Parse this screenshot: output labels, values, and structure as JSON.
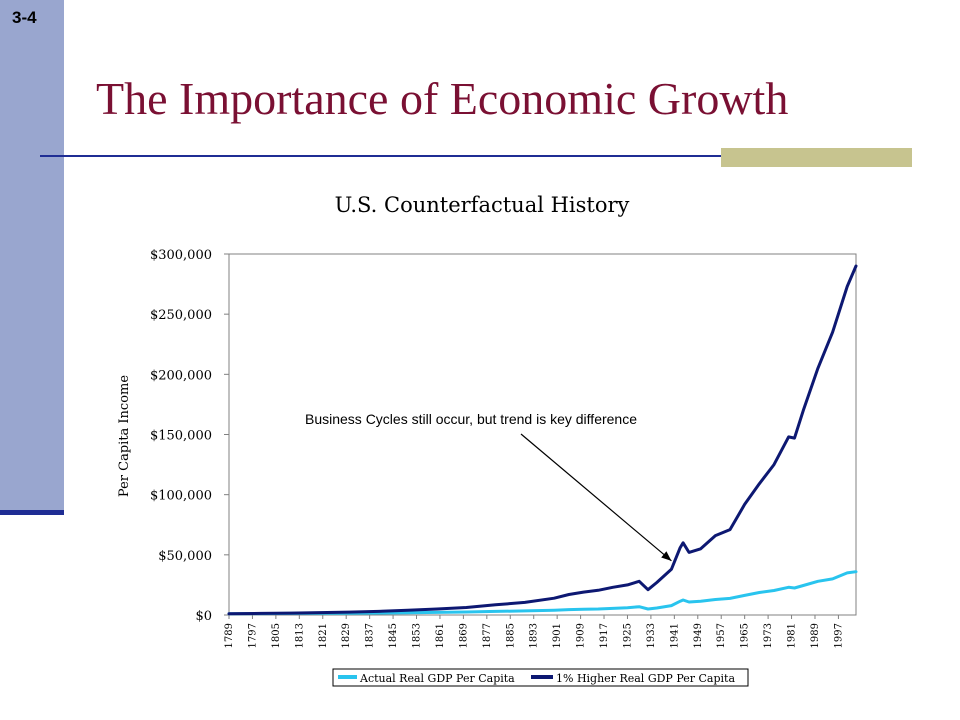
{
  "slide": {
    "number": "3-4",
    "title": "The Importance of Economic Growth"
  },
  "colors": {
    "sidebar": "#99a6cf",
    "accent_line": "#1f2d94",
    "title_text": "#7a1033",
    "accent_block": "#c7c48f",
    "series_actual": "#29c4ee",
    "series_higher": "#0d1872"
  },
  "chart_data": {
    "type": "line",
    "title": "U.S. Counterfactual History",
    "xlabel": "",
    "ylabel": "Per Capita Income",
    "ylim": [
      0,
      300000
    ],
    "y_ticks": [
      0,
      50000,
      100000,
      150000,
      200000,
      250000,
      300000
    ],
    "y_tick_labels": [
      "$0",
      "$50,000",
      "$100,000",
      "$150,000",
      "$200,000",
      "$250,000",
      "$300,000"
    ],
    "xlim": [
      1789,
      2003
    ],
    "x_tick_labels": [
      "1789",
      "1797",
      "1805",
      "1813",
      "1821",
      "1829",
      "1837",
      "1845",
      "1853",
      "1861",
      "1869",
      "1877",
      "1885",
      "1893",
      "1901",
      "1909",
      "1917",
      "1925",
      "1933",
      "1941",
      "1949",
      "1957",
      "1965",
      "1973",
      "1981",
      "1989",
      "1997"
    ],
    "grid": false,
    "legend_position": "bottom",
    "annotation": "Business Cycles still occur, but trend is key difference",
    "annotation_target": [
      1940,
      45000
    ],
    "series": [
      {
        "name": "Actual Real GDP Per Capita",
        "x": [
          1789,
          1800,
          1810,
          1820,
          1830,
          1840,
          1850,
          1860,
          1870,
          1880,
          1890,
          1900,
          1905,
          1910,
          1915,
          1920,
          1925,
          1929,
          1932,
          1935,
          1940,
          1943,
          1944,
          1946,
          1950,
          1955,
          1960,
          1965,
          1970,
          1975,
          1980,
          1982,
          1985,
          1990,
          1995,
          2000,
          2003
        ],
        "y": [
          1100,
          1200,
          1300,
          1400,
          1500,
          1700,
          1900,
          2200,
          2500,
          3000,
          3400,
          4000,
          4500,
          4800,
          5000,
          5500,
          6100,
          6900,
          5000,
          5800,
          7800,
          11500,
          12500,
          10800,
          11500,
          12900,
          13800,
          16300,
          18700,
          20400,
          23000,
          22400,
          24500,
          28000,
          30000,
          35000,
          36000
        ]
      },
      {
        "name": "1% Higher Real GDP Per Capita",
        "x": [
          1789,
          1800,
          1810,
          1820,
          1830,
          1840,
          1850,
          1860,
          1870,
          1880,
          1890,
          1900,
          1905,
          1910,
          1915,
          1920,
          1925,
          1929,
          1932,
          1935,
          1940,
          1943,
          1944,
          1946,
          1950,
          1955,
          1960,
          1965,
          1970,
          1975,
          1980,
          1982,
          1985,
          1990,
          1995,
          2000,
          2003
        ],
        "y": [
          1100,
          1300,
          1600,
          2000,
          2400,
          3000,
          3900,
          5000,
          6200,
          8500,
          10500,
          14000,
          17000,
          19000,
          20500,
          23000,
          25000,
          28000,
          21000,
          27000,
          38000,
          56000,
          60000,
          52000,
          55000,
          66000,
          71000,
          92000,
          109000,
          125000,
          148000,
          147000,
          170000,
          205000,
          235000,
          273000,
          290000
        ]
      }
    ]
  }
}
